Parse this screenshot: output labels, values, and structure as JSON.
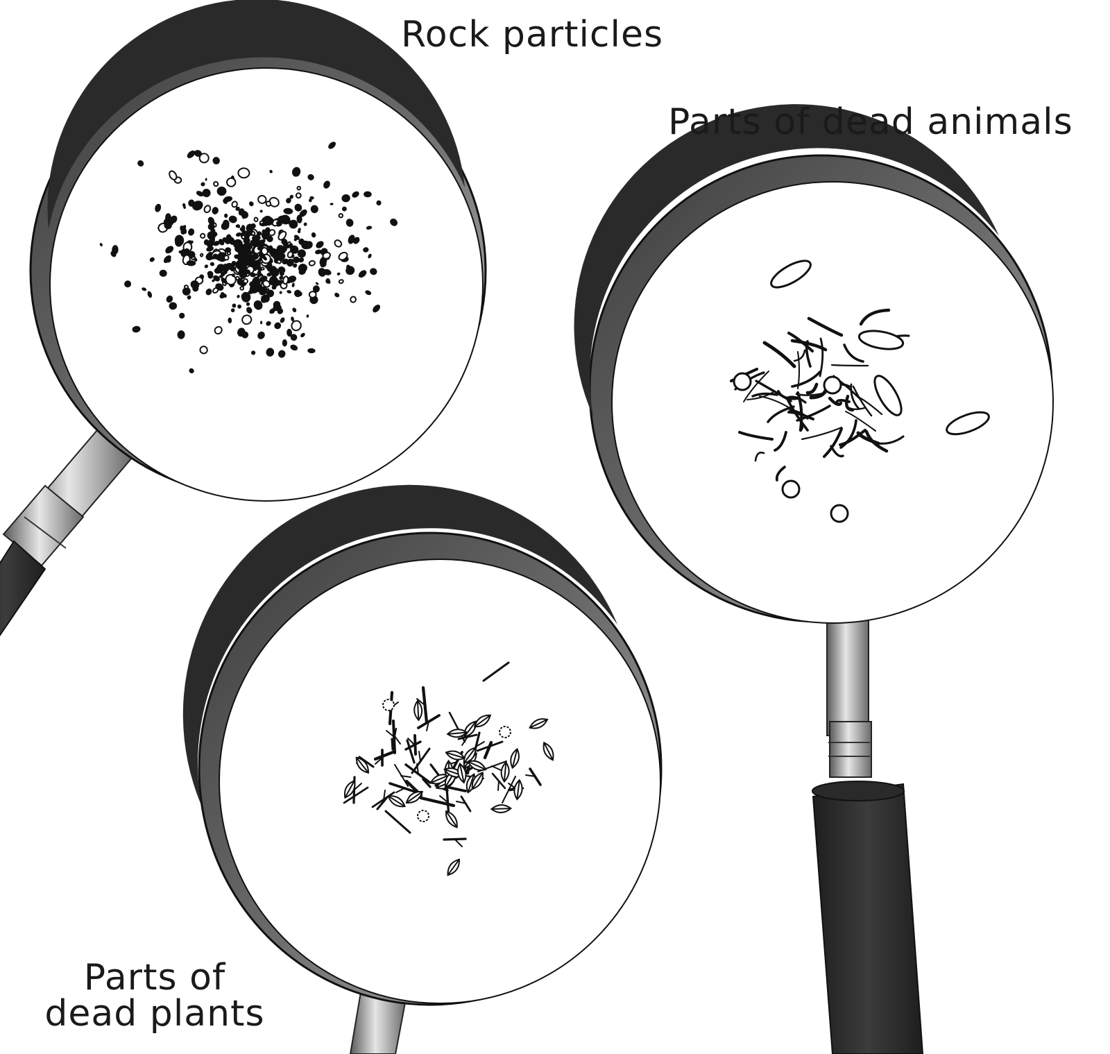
{
  "labels": {
    "rock": "Rock particles",
    "animals": "Parts of dead animals",
    "plants_line1": "Parts of",
    "plants_line2": "dead plants"
  },
  "colors": {
    "rim_dark": "#4a4a4a",
    "rim_inner": "#2f2f2f",
    "handle_dark": "#2b2b2b",
    "handle_metal": "#9a9a9a",
    "lens": "#ffffff",
    "ink": "#111111"
  }
}
